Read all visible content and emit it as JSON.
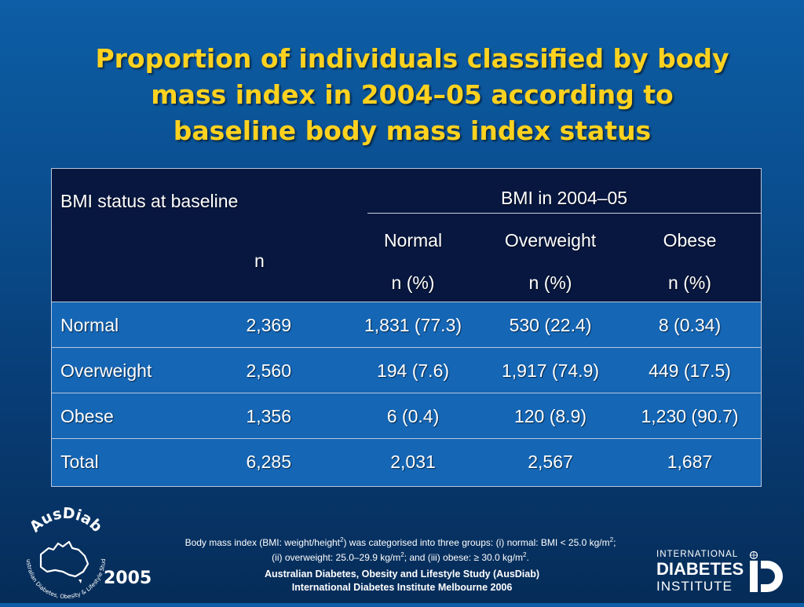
{
  "title": {
    "line1": "Proportion of individuals classified by body",
    "line2": "mass index in 2004–05 according to",
    "line3": "baseline body mass index status"
  },
  "table": {
    "header": {
      "baseline_label": "BMI status at baseline",
      "n_label": "n",
      "span_label": "BMI in 2004–05",
      "columns": [
        "Normal",
        "Overweight",
        "Obese"
      ],
      "units": [
        "n (%)",
        "n (%)",
        "n (%)"
      ]
    },
    "rows": [
      {
        "label": "Normal",
        "n": "2,369",
        "normal": "1,831 (77.3)",
        "overweight": "530 (22.4)",
        "obese": "8 (0.34)"
      },
      {
        "label": "Overweight",
        "n": "2,560",
        "normal": "194 (7.6)",
        "overweight": "1,917 (74.9)",
        "obese": "449 (17.5)"
      },
      {
        "label": "Obese",
        "n": "1,356",
        "normal": "6 (0.4)",
        "overweight": "120 (8.9)",
        "obese": "1,230 (90.7)"
      },
      {
        "label": "Total",
        "n": "6,285",
        "normal": "2,031",
        "overweight": "2,567",
        "obese": "1,687"
      }
    ]
  },
  "footnote": {
    "p1": "Body mass index (BMI: weight/height",
    "p1_sup": "2",
    "p2": ") was categorised into three groups: (i) normal: BMI < 25.0 kg/m",
    "p2_sup": "2",
    "p3": ";",
    "p4": "(ii) overweight: 25.0–29.9 kg/m",
    "p4_sup": "2",
    "p5": "; and (iii) obese: ≥ 30.0 kg/m",
    "p5_sup": "2",
    "p6": "."
  },
  "source": {
    "line1": "Australian Diabetes, Obesity and Lifestyle Study (AusDiab)",
    "line2": "International Diabetes Institute Melbourne 2006"
  },
  "logo_left": {
    "wordmark": "AusDiab",
    "ring_text": "Australian Diabetes, Obesity & Lifestyle Study",
    "year": "2005"
  },
  "logo_right": {
    "line1": "INTERNATIONAL",
    "line2": "DIABETES",
    "line3": "INSTITUTE"
  },
  "colors": {
    "title": "#ffd21f",
    "header_bg": "#07173f",
    "row_bg": "#1566b5"
  }
}
